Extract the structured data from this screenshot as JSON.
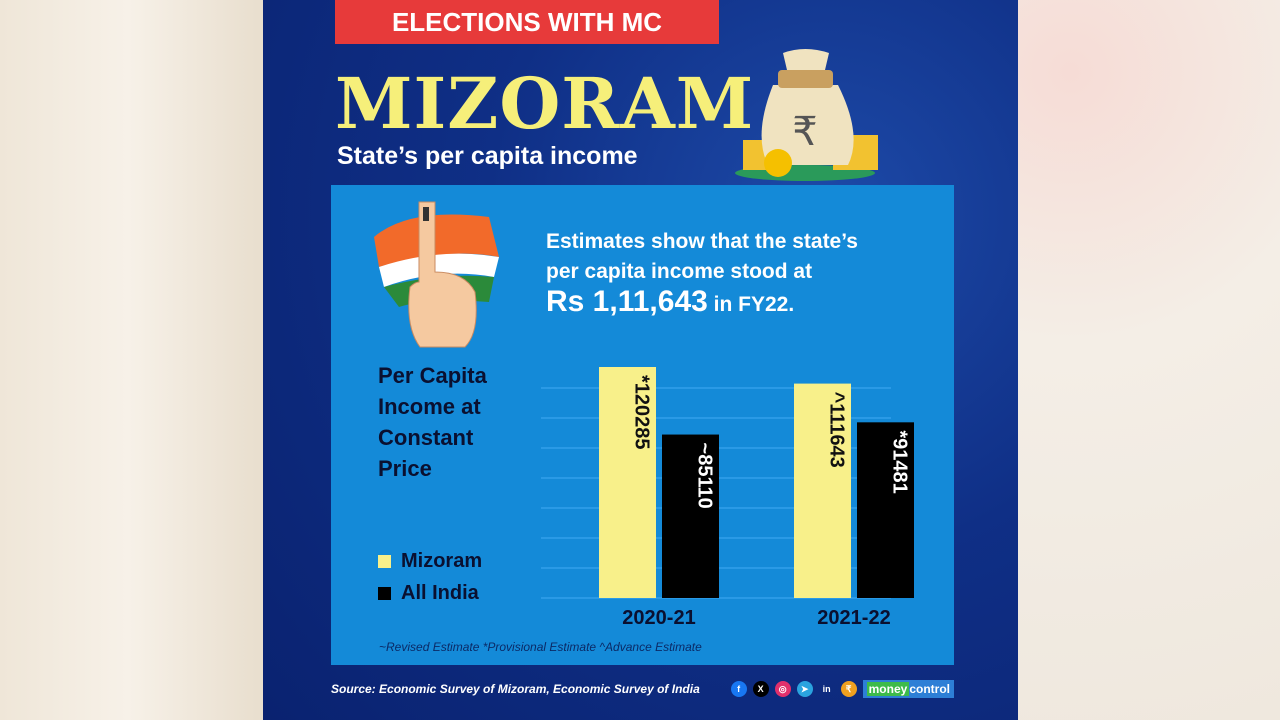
{
  "header": {
    "banner": "ELECTIONS WITH MC",
    "title": "MIZORAM",
    "subtitle": "State’s per capita income"
  },
  "estimate": {
    "line1": "Estimates show that the state’s",
    "line2": "per capita income stood at",
    "amount": "Rs 1,11,643",
    "suffix": " in FY22."
  },
  "chart_data": {
    "type": "bar",
    "ylabel": "Per Capita Income at Constant Price",
    "categories": [
      "2020-21",
      "2021-22"
    ],
    "series": [
      {
        "name": "Mizoram",
        "values": [
          120285,
          111643
        ],
        "labels": [
          "*120285",
          "^111643"
        ],
        "color": "#f8f08a"
      },
      {
        "name": "All India",
        "values": [
          85110,
          91481
        ],
        "labels": [
          "~85110",
          "*91481"
        ],
        "color": "#000000"
      }
    ],
    "ylim": [
      0,
      130000
    ],
    "grid": true,
    "legend": "left"
  },
  "note": "~Revised Estimate *Provisional Estimate ^Advance Estimate",
  "footer": {
    "source": "Source: Economic Survey of Mizoram, Economic Survey of India",
    "brand": "money",
    "brand2": "control",
    "socials": [
      {
        "icon": "facebook-icon",
        "g": "f",
        "c": "#1877f2"
      },
      {
        "icon": "x-icon",
        "g": "X",
        "c": "#000"
      },
      {
        "icon": "instagram-icon",
        "g": "◎",
        "c": "#e1306c"
      },
      {
        "icon": "telegram-icon",
        "g": "➤",
        "c": "#2aa3df"
      },
      {
        "icon": "linkedin-icon",
        "g": "in",
        "c": "transparent"
      },
      {
        "icon": "moneycontrol-icon",
        "g": "₹",
        "c": "#f0a020"
      }
    ]
  }
}
